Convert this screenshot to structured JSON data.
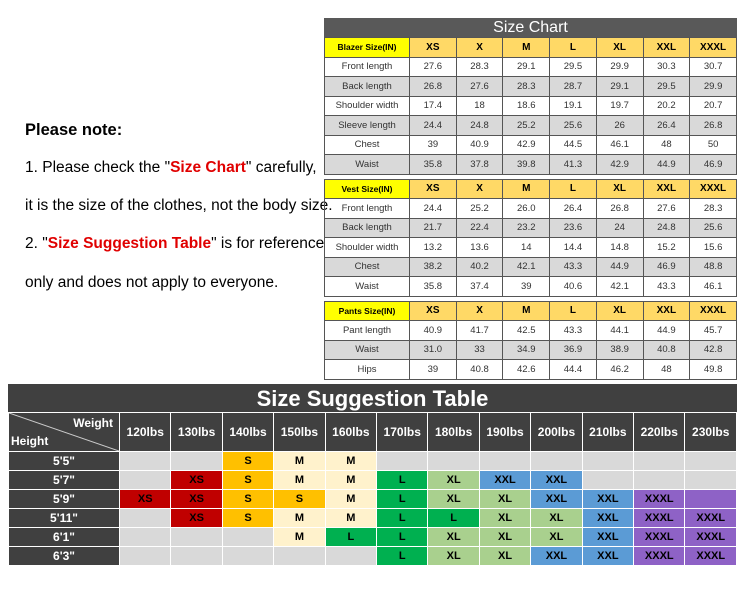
{
  "notes": {
    "heading": "Please note:",
    "line1_pre": "1. Please check the \"",
    "line1_red": "Size Chart",
    "line1_post": "\" carefully,",
    "line2": "it is the size of the clothes, not the body size.",
    "line3_pre": "2. \"",
    "line3_red": "Size Suggestion Table",
    "line3_post": "\" is for reference",
    "line4": "only and does not apply to everyone."
  },
  "size_chart": {
    "title": "Size Chart",
    "sections": [
      {
        "label": "Blazer Size(IN)",
        "sizes": [
          "XS",
          "X",
          "M",
          "L",
          "XL",
          "XXL",
          "XXXL"
        ],
        "rows": [
          {
            "name": "Front length",
            "values": [
              "27.6",
              "28.3",
              "29.1",
              "29.5",
              "29.9",
              "30.3",
              "30.7"
            ]
          },
          {
            "name": "Back length",
            "values": [
              "26.8",
              "27.6",
              "28.3",
              "28.7",
              "29.1",
              "29.5",
              "29.9"
            ]
          },
          {
            "name": "Shoulder width",
            "values": [
              "17.4",
              "18",
              "18.6",
              "19.1",
              "19.7",
              "20.2",
              "20.7"
            ]
          },
          {
            "name": "Sleeve length",
            "values": [
              "24.4",
              "24.8",
              "25.2",
              "25.6",
              "26",
              "26.4",
              "26.8"
            ]
          },
          {
            "name": "Chest",
            "values": [
              "39",
              "40.9",
              "42.9",
              "44.5",
              "46.1",
              "48",
              "50"
            ]
          },
          {
            "name": "Waist",
            "values": [
              "35.8",
              "37.8",
              "39.8",
              "41.3",
              "42.9",
              "44.9",
              "46.9"
            ]
          }
        ]
      },
      {
        "label": "Vest Size(IN)",
        "sizes": [
          "XS",
          "X",
          "M",
          "L",
          "XL",
          "XXL",
          "XXXL"
        ],
        "rows": [
          {
            "name": "Front length",
            "values": [
              "24.4",
              "25.2",
              "26.0",
              "26.4",
              "26.8",
              "27.6",
              "28.3"
            ]
          },
          {
            "name": "Back length",
            "values": [
              "21.7",
              "22.4",
              "23.2",
              "23.6",
              "24",
              "24.8",
              "25.6"
            ]
          },
          {
            "name": "Shoulder width",
            "values": [
              "13.2",
              "13.6",
              "14",
              "14.4",
              "14.8",
              "15.2",
              "15.6"
            ]
          },
          {
            "name": "Chest",
            "values": [
              "38.2",
              "40.2",
              "42.1",
              "43.3",
              "44.9",
              "46.9",
              "48.8"
            ]
          },
          {
            "name": "Waist",
            "values": [
              "35.8",
              "37.4",
              "39",
              "40.6",
              "42.1",
              "43.3",
              "46.1"
            ]
          }
        ]
      },
      {
        "label": "Pants Size(IN)",
        "sizes": [
          "XS",
          "X",
          "M",
          "L",
          "XL",
          "XXL",
          "XXXL"
        ],
        "rows": [
          {
            "name": "Pant length",
            "values": [
              "40.9",
              "41.7",
              "42.5",
              "43.3",
              "44.1",
              "44.9",
              "45.7"
            ]
          },
          {
            "name": "Waist",
            "values": [
              "31.0",
              "33",
              "34.9",
              "36.9",
              "38.9",
              "40.8",
              "42.8"
            ]
          },
          {
            "name": "Hips",
            "values": [
              "39",
              "40.8",
              "42.6",
              "44.4",
              "46.2",
              "48",
              "49.8"
            ]
          }
        ]
      }
    ]
  },
  "suggestion": {
    "title": "Size Suggestion Table",
    "weight_label": "Weight",
    "height_label": "Height",
    "weights": [
      "120lbs",
      "130lbs",
      "140lbs",
      "150lbs",
      "160lbs",
      "170lbs",
      "180lbs",
      "190lbs",
      "200lbs",
      "210lbs",
      "220lbs",
      "230lbs"
    ],
    "colors": {
      "empty": "#d9d9d9",
      "XS": "#c00000",
      "S": "#ffc000",
      "M": "#fff2cc",
      "L": "#00b050",
      "XL": "#a9d08e",
      "XXL": "#5b9bd5",
      "XXXL": "#8e62c6"
    },
    "rows": [
      {
        "height": "5'5\"",
        "cells": [
          "",
          "",
          "S",
          "M",
          "M",
          "",
          "",
          "",
          "",
          "",
          "",
          ""
        ]
      },
      {
        "height": "5'7\"",
        "cells": [
          "",
          "XS",
          "S",
          "M",
          "M",
          "L",
          "XL",
          "XXL",
          "XXL",
          "",
          "",
          ""
        ]
      },
      {
        "height": "5'9\"",
        "cells": [
          "XS",
          "XS",
          "S",
          "S",
          "M",
          "L",
          "XL",
          "XL",
          "XXL",
          "XXL",
          "XXXL",
          ""
        ],
        "fill_last": "XXXL"
      },
      {
        "height": "5'11\"",
        "cells": [
          "",
          "XS",
          "S",
          "M",
          "M",
          "L",
          "L",
          "XL",
          "XL",
          "XXL",
          "XXXL",
          "XXXL"
        ]
      },
      {
        "height": "6'1\"",
        "cells": [
          "",
          "",
          "",
          "M",
          "L",
          "L",
          "XL",
          "XL",
          "XL",
          "XXL",
          "XXXL",
          "XXXL"
        ]
      },
      {
        "height": "6'3\"",
        "cells": [
          "",
          "",
          "",
          "",
          "",
          "L",
          "XL",
          "XL",
          "XXL",
          "XXL",
          "XXXL",
          "XXXL"
        ]
      }
    ]
  }
}
